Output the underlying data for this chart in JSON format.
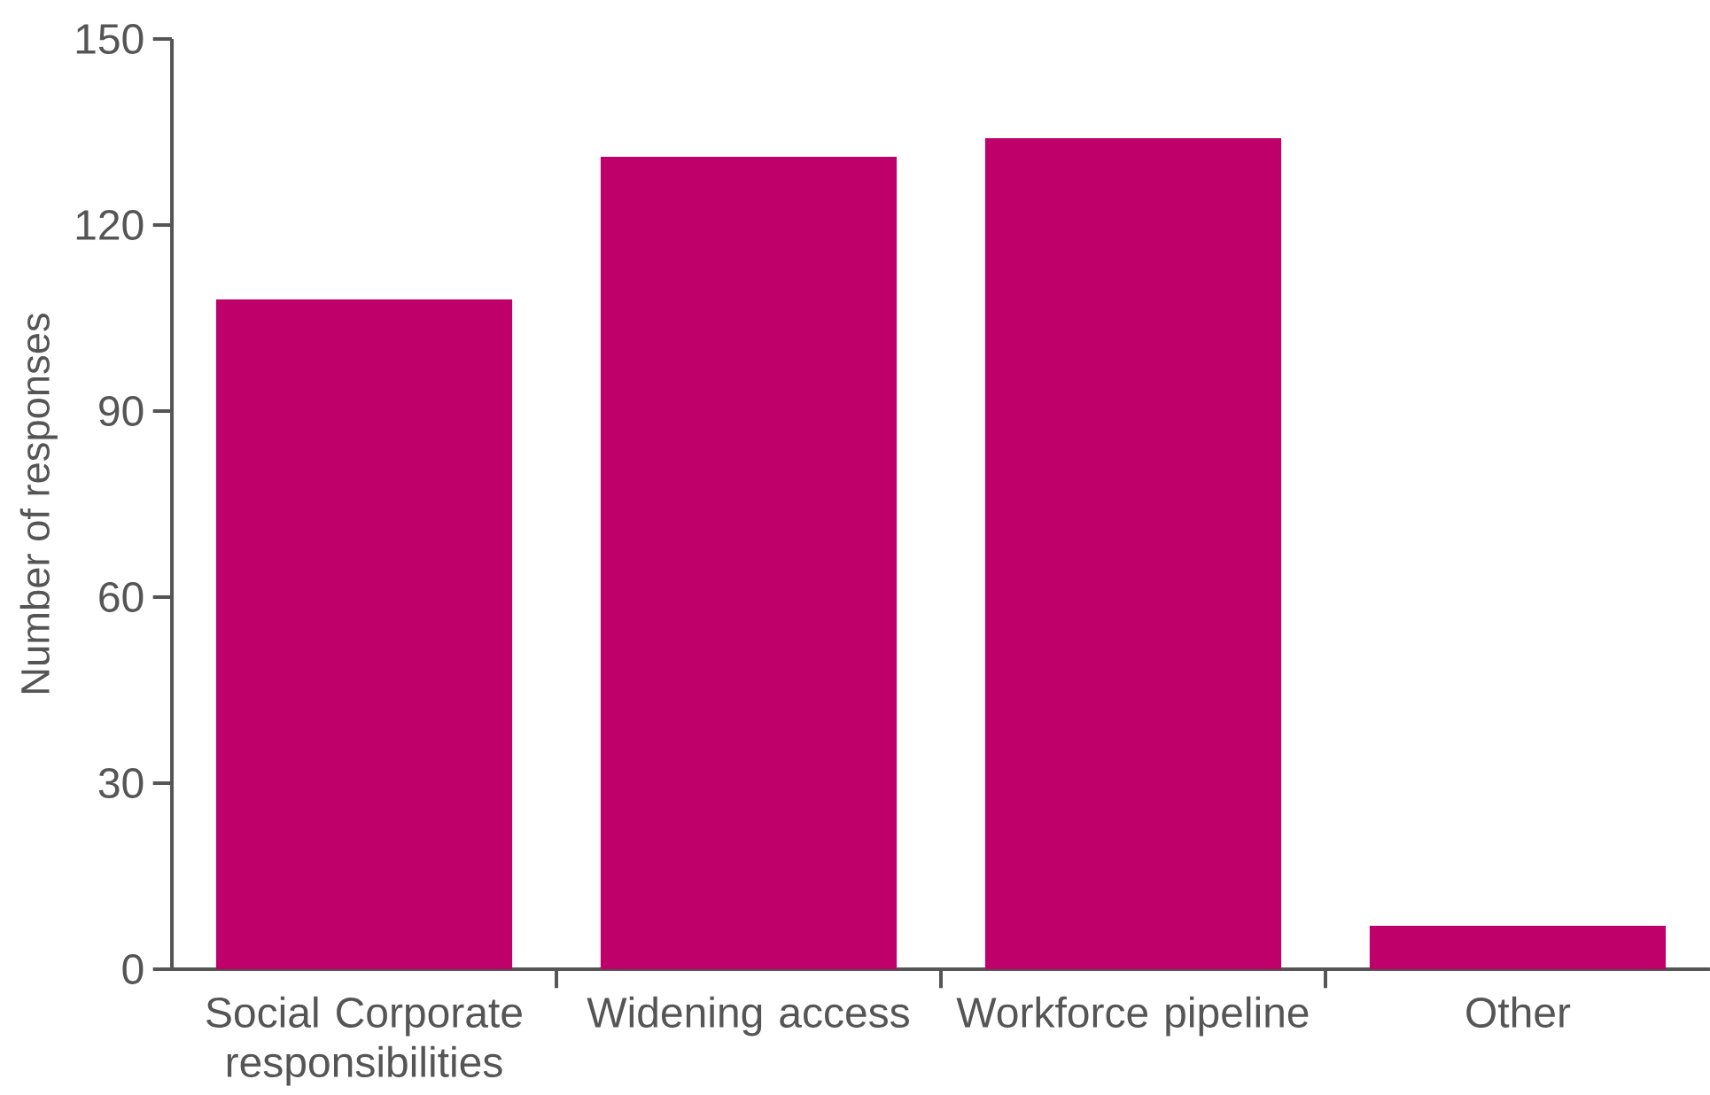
{
  "chart_data": {
    "type": "bar",
    "ylabel": "Number of responses",
    "categories": [
      "Social Corporate responsibilities",
      "Widening access",
      "Workforce pipeline",
      "Other"
    ],
    "values": [
      108,
      131,
      134,
      7
    ],
    "color": "#c0006a",
    "ylim": [
      0,
      150
    ],
    "yticks": [
      0,
      30,
      60,
      90,
      120,
      150
    ],
    "grid": false
  }
}
